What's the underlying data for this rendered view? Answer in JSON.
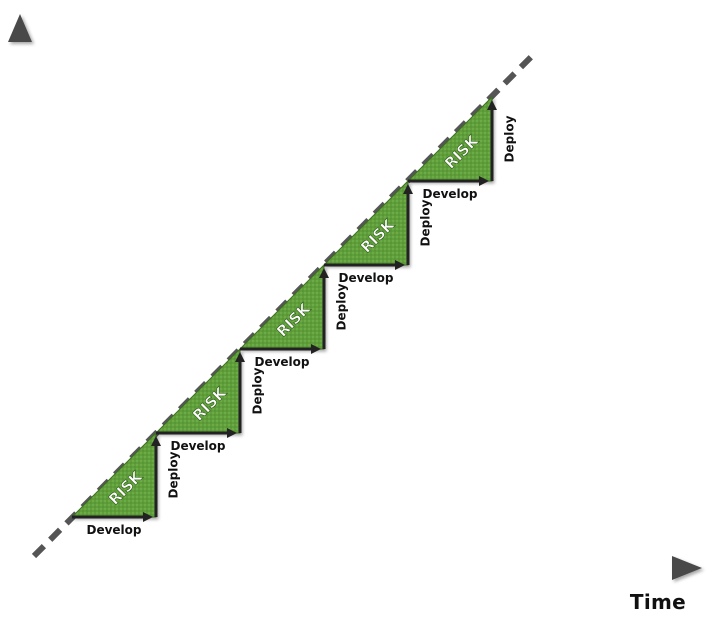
{
  "axes": {
    "x_label": "Time"
  },
  "cycles": [
    {
      "risk_label": "RISK",
      "develop_label": "Develop",
      "deploy_label": "Deploy"
    },
    {
      "risk_label": "RISK",
      "develop_label": "Develop",
      "deploy_label": "Deploy"
    },
    {
      "risk_label": "RISK",
      "develop_label": "Develop",
      "deploy_label": "Deploy"
    },
    {
      "risk_label": "RISK",
      "develop_label": "Develop",
      "deploy_label": "Deploy"
    },
    {
      "risk_label": "RISK",
      "develop_label": "Develop",
      "deploy_label": "Deploy"
    }
  ],
  "colors": {
    "risk_fill": "#5e9e3a",
    "risk_fill_light": "#7fbf55",
    "arrow": "#222222",
    "axis": "#4a4a4a",
    "trend_line": "#555555"
  }
}
